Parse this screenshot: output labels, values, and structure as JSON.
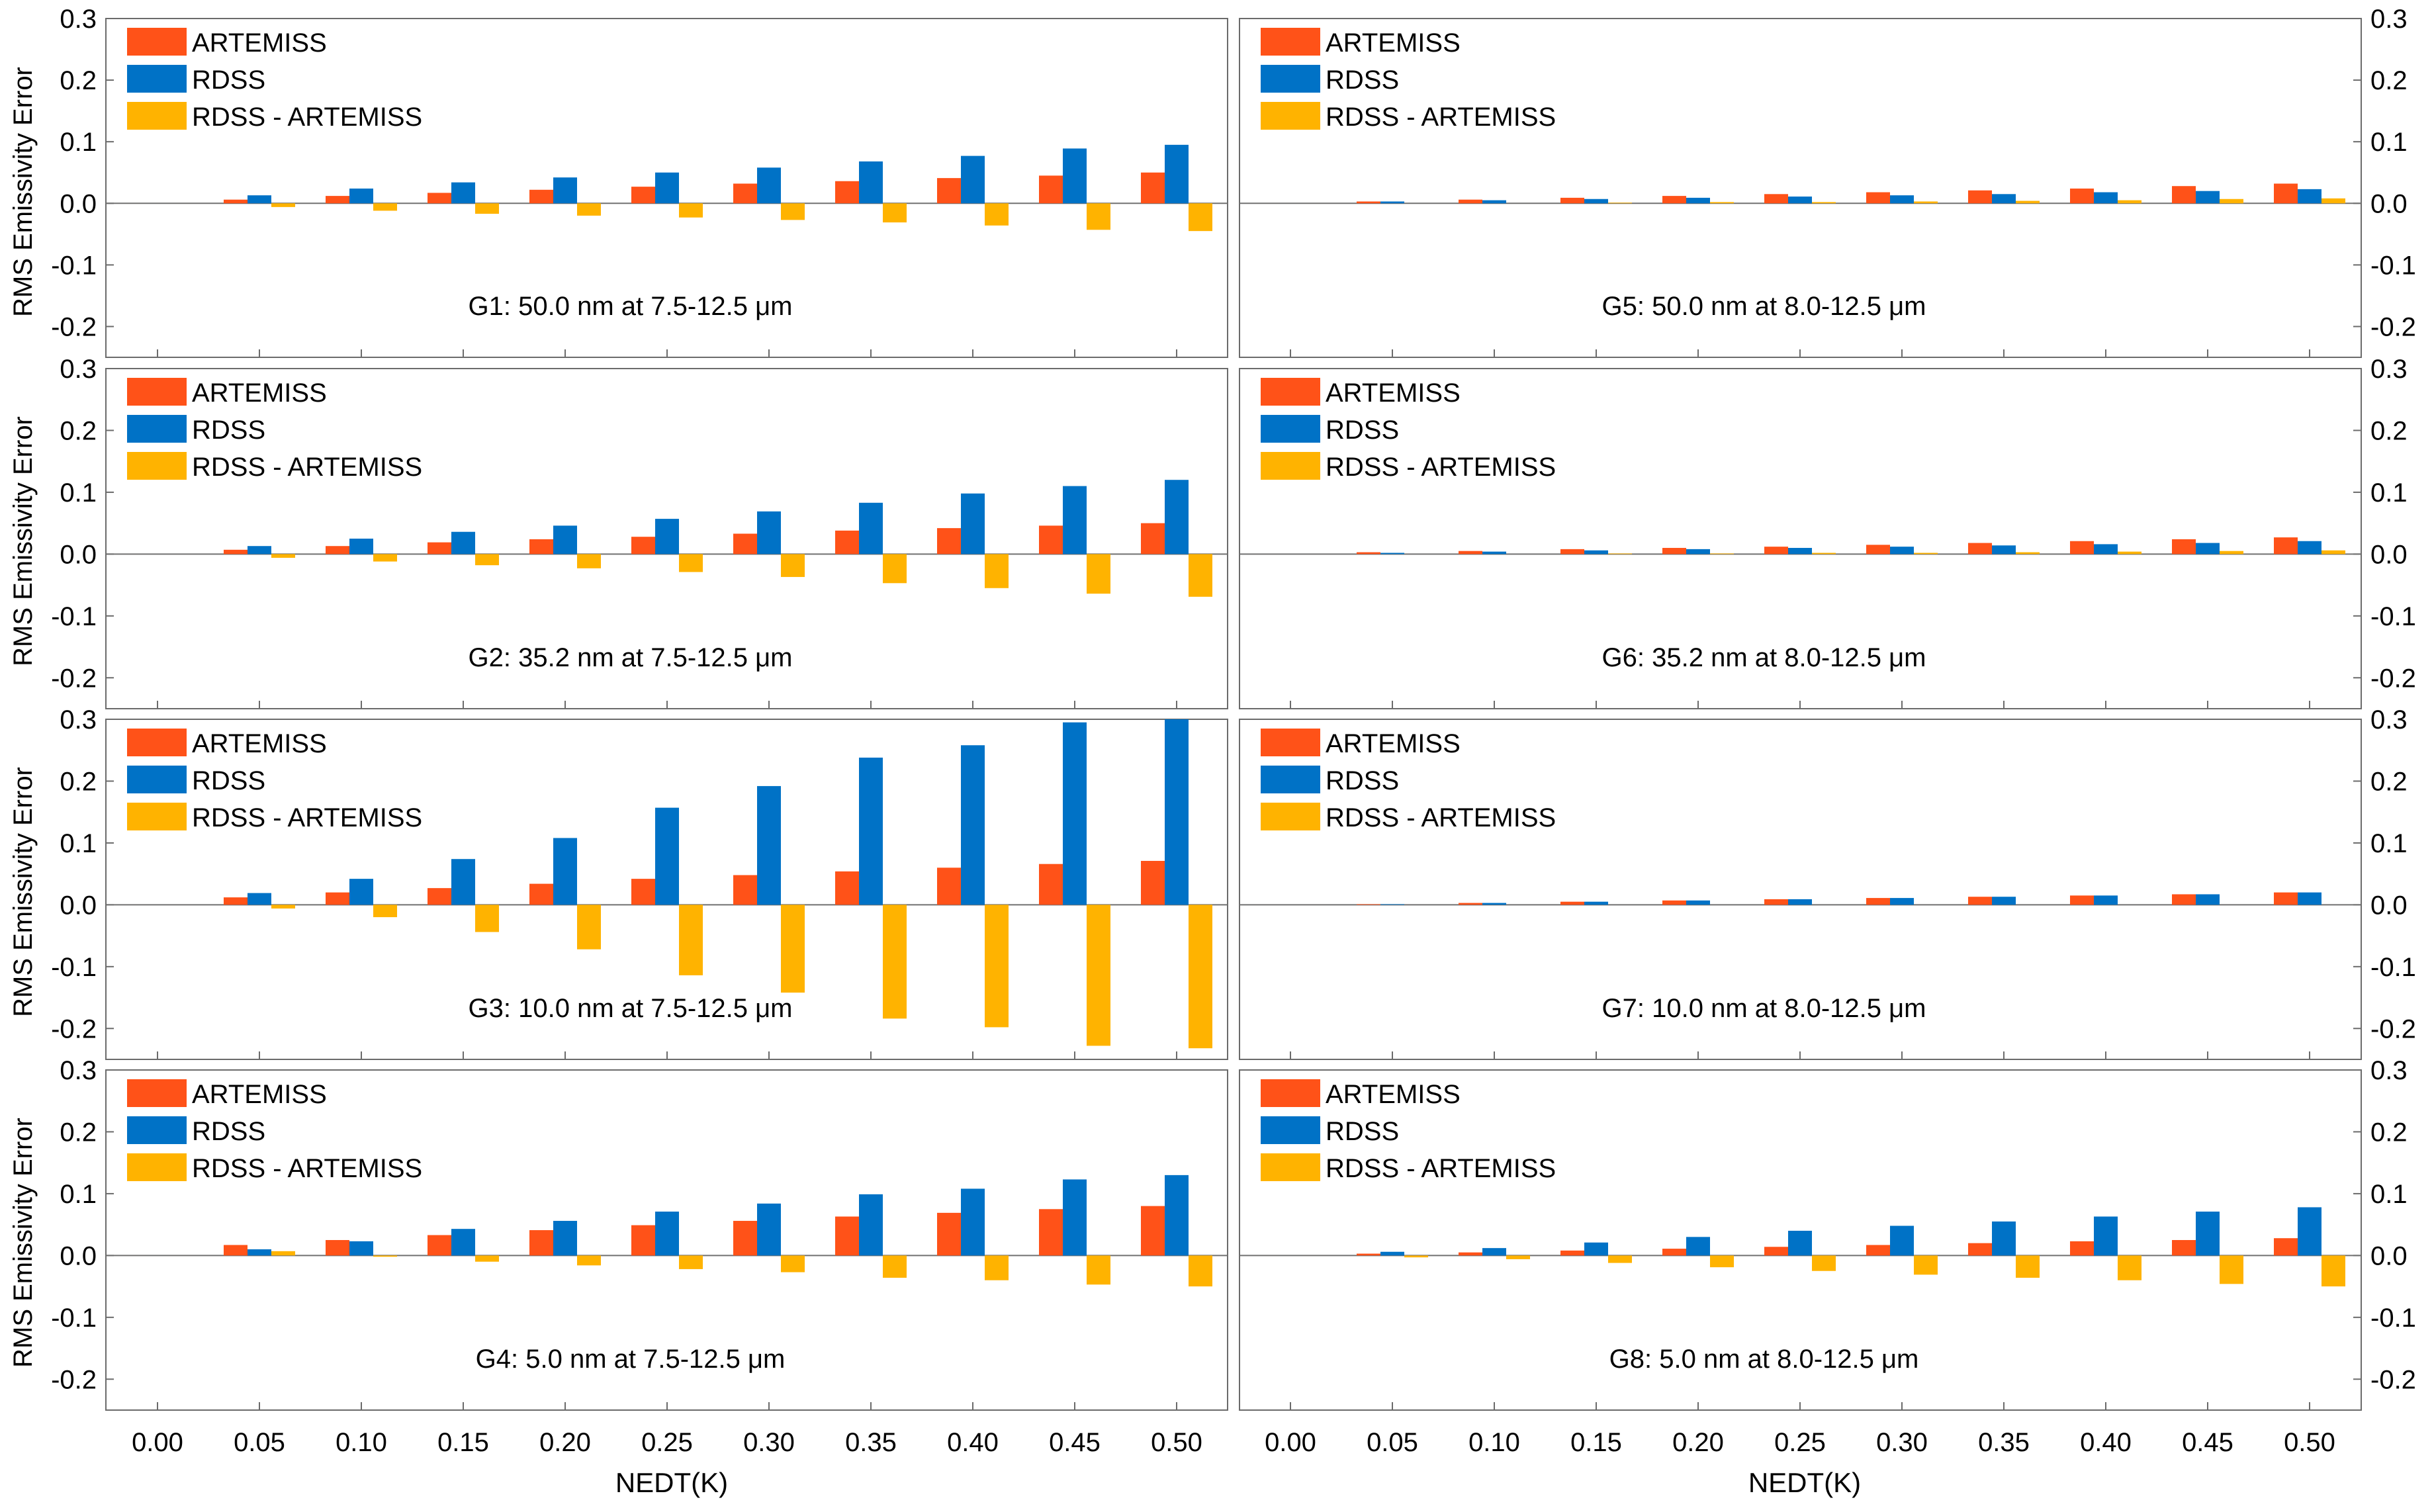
{
  "figure": {
    "ylabel": "RMS Emissivity Error",
    "xlabel": "NEDT(K)"
  },
  "colors": {
    "artemiss": "#FF5218",
    "rdss": "#0072C6",
    "diff": "#FFB300"
  },
  "legend": [
    "ARTEMISS",
    "RDSS",
    "RDSS - ARTEMISS"
  ],
  "chart_data": [
    {
      "type": "bar",
      "panel": "G1",
      "title": "G1: 50.0 nm at 7.5-12.5 μm",
      "x": [
        "0.00",
        "0.05",
        "0.10",
        "0.15",
        "0.20",
        "0.25",
        "0.30",
        "0.35",
        "0.40",
        "0.45",
        "0.50"
      ],
      "ylim": [
        -0.25,
        0.3
      ],
      "yticks": [
        "0.3",
        "0.2",
        "0.1",
        "0.0",
        "-0.1",
        "-0.2"
      ],
      "series": [
        {
          "name": "ARTEMISS",
          "values": [
            0,
            0.006,
            0.012,
            0.017,
            0.022,
            0.027,
            0.032,
            0.036,
            0.041,
            0.045,
            0.05
          ]
        },
        {
          "name": "RDSS",
          "values": [
            0,
            0.013,
            0.024,
            0.034,
            0.042,
            0.05,
            0.058,
            0.068,
            0.077,
            0.089,
            0.095
          ]
        },
        {
          "name": "RDSS - ARTEMISS",
          "values": [
            0,
            -0.006,
            -0.012,
            -0.017,
            -0.02,
            -0.023,
            -0.027,
            -0.031,
            -0.036,
            -0.043,
            -0.045
          ]
        }
      ]
    },
    {
      "type": "bar",
      "panel": "G5",
      "title": "G5: 50.0 nm at 8.0-12.5 μm",
      "x": [
        "0.00",
        "0.05",
        "0.10",
        "0.15",
        "0.20",
        "0.25",
        "0.30",
        "0.35",
        "0.40",
        "0.45",
        "0.50"
      ],
      "ylim": [
        -0.25,
        0.3
      ],
      "yticks": [
        "0.3",
        "0.2",
        "0.1",
        "0.0",
        "-0.1",
        "-0.2"
      ],
      "series": [
        {
          "name": "ARTEMISS",
          "values": [
            0,
            0.003,
            0.006,
            0.009,
            0.012,
            0.015,
            0.018,
            0.021,
            0.024,
            0.028,
            0.032
          ]
        },
        {
          "name": "RDSS",
          "values": [
            0,
            0.003,
            0.005,
            0.007,
            0.009,
            0.011,
            0.013,
            0.015,
            0.018,
            0.02,
            0.023
          ]
        },
        {
          "name": "RDSS - ARTEMISS",
          "values": [
            0,
            0,
            0,
            0.001,
            0.002,
            0.002,
            0.003,
            0.004,
            0.005,
            0.007,
            0.008
          ]
        }
      ]
    },
    {
      "type": "bar",
      "panel": "G2",
      "title": "G2: 35.2 nm at 7.5-12.5 μm",
      "x": [
        "0.00",
        "0.05",
        "0.10",
        "0.15",
        "0.20",
        "0.25",
        "0.30",
        "0.35",
        "0.40",
        "0.45",
        "0.50"
      ],
      "ylim": [
        -0.25,
        0.3
      ],
      "yticks": [
        "0.3",
        "0.2",
        "0.1",
        "0.0",
        "-0.1",
        "-0.2"
      ],
      "series": [
        {
          "name": "ARTEMISS",
          "values": [
            0,
            0.007,
            0.013,
            0.019,
            0.024,
            0.028,
            0.033,
            0.038,
            0.042,
            0.046,
            0.05
          ]
        },
        {
          "name": "RDSS",
          "values": [
            0,
            0.013,
            0.025,
            0.036,
            0.046,
            0.057,
            0.069,
            0.083,
            0.098,
            0.11,
            0.12
          ]
        },
        {
          "name": "RDSS - ARTEMISS",
          "values": [
            0,
            -0.006,
            -0.012,
            -0.018,
            -0.023,
            -0.029,
            -0.037,
            -0.047,
            -0.055,
            -0.064,
            -0.069
          ]
        }
      ]
    },
    {
      "type": "bar",
      "panel": "G6",
      "title": "G6: 35.2 nm at 8.0-12.5 μm",
      "x": [
        "0.00",
        "0.05",
        "0.10",
        "0.15",
        "0.20",
        "0.25",
        "0.30",
        "0.35",
        "0.40",
        "0.45",
        "0.50"
      ],
      "ylim": [
        -0.25,
        0.3
      ],
      "yticks": [
        "0.3",
        "0.2",
        "0.1",
        "0.0",
        "-0.1",
        "-0.2"
      ],
      "series": [
        {
          "name": "ARTEMISS",
          "values": [
            0,
            0.003,
            0.005,
            0.008,
            0.01,
            0.012,
            0.015,
            0.018,
            0.021,
            0.024,
            0.027
          ]
        },
        {
          "name": "RDSS",
          "values": [
            0,
            0.002,
            0.004,
            0.006,
            0.008,
            0.01,
            0.012,
            0.014,
            0.016,
            0.018,
            0.021
          ]
        },
        {
          "name": "RDSS - ARTEMISS",
          "values": [
            0,
            0,
            0,
            0.001,
            0.001,
            0.002,
            0.002,
            0.003,
            0.004,
            0.005,
            0.006
          ]
        }
      ]
    },
    {
      "type": "bar",
      "panel": "G3",
      "title": "G3: 10.0 nm at 7.5-12.5 μm",
      "x": [
        "0.00",
        "0.05",
        "0.10",
        "0.15",
        "0.20",
        "0.25",
        "0.30",
        "0.35",
        "0.40",
        "0.45",
        "0.50"
      ],
      "ylim": [
        -0.25,
        0.3
      ],
      "yticks": [
        "0.3",
        "0.2",
        "0.1",
        "0.0",
        "-0.1",
        "-0.2"
      ],
      "series": [
        {
          "name": "ARTEMISS",
          "values": [
            0,
            0.012,
            0.02,
            0.027,
            0.034,
            0.042,
            0.048,
            0.054,
            0.06,
            0.066,
            0.071
          ]
        },
        {
          "name": "RDSS",
          "values": [
            0,
            0.019,
            0.042,
            0.074,
            0.108,
            0.157,
            0.192,
            0.238,
            0.258,
            0.295,
            0.3
          ]
        },
        {
          "name": "RDSS - ARTEMISS",
          "values": [
            0,
            -0.006,
            -0.02,
            -0.044,
            -0.072,
            -0.114,
            -0.142,
            -0.184,
            -0.198,
            -0.228,
            -0.232
          ]
        }
      ]
    },
    {
      "type": "bar",
      "panel": "G7",
      "title": "G7: 10.0 nm at 8.0-12.5 μm",
      "x": [
        "0.00",
        "0.05",
        "0.10",
        "0.15",
        "0.20",
        "0.25",
        "0.30",
        "0.35",
        "0.40",
        "0.45",
        "0.50"
      ],
      "ylim": [
        -0.25,
        0.3
      ],
      "yticks": [
        "0.3",
        "0.2",
        "0.1",
        "0.0",
        "-0.1",
        "-0.2"
      ],
      "series": [
        {
          "name": "ARTEMISS",
          "values": [
            0,
            0.001,
            0.003,
            0.005,
            0.007,
            0.009,
            0.011,
            0.013,
            0.015,
            0.017,
            0.02
          ]
        },
        {
          "name": "RDSS",
          "values": [
            0,
            0.001,
            0.003,
            0.005,
            0.007,
            0.009,
            0.011,
            0.013,
            0.015,
            0.017,
            0.02
          ]
        },
        {
          "name": "RDSS - ARTEMISS",
          "values": [
            0,
            0,
            0,
            0,
            0,
            0,
            0,
            0,
            0,
            0,
            0
          ]
        }
      ]
    },
    {
      "type": "bar",
      "panel": "G4",
      "title": "G4: 5.0 nm at 7.5-12.5 μm",
      "x": [
        "0.00",
        "0.05",
        "0.10",
        "0.15",
        "0.20",
        "0.25",
        "0.30",
        "0.35",
        "0.40",
        "0.45",
        "0.50"
      ],
      "ylim": [
        -0.25,
        0.3
      ],
      "yticks": [
        "0.3",
        "0.2",
        "0.1",
        "0.0",
        "-0.1",
        "-0.2"
      ],
      "series": [
        {
          "name": "ARTEMISS",
          "values": [
            0,
            0.017,
            0.025,
            0.033,
            0.041,
            0.049,
            0.056,
            0.063,
            0.069,
            0.075,
            0.08
          ]
        },
        {
          "name": "RDSS",
          "values": [
            0,
            0.01,
            0.023,
            0.043,
            0.056,
            0.071,
            0.084,
            0.099,
            0.108,
            0.123,
            0.13
          ]
        },
        {
          "name": "RDSS - ARTEMISS",
          "values": [
            0,
            0.007,
            -0.002,
            -0.01,
            -0.016,
            -0.022,
            -0.027,
            -0.036,
            -0.04,
            -0.047,
            -0.05
          ]
        }
      ]
    },
    {
      "type": "bar",
      "panel": "G8",
      "title": "G8: 5.0 nm at 8.0-12.5 μm",
      "x": [
        "0.00",
        "0.05",
        "0.10",
        "0.15",
        "0.20",
        "0.25",
        "0.30",
        "0.35",
        "0.40",
        "0.45",
        "0.50"
      ],
      "ylim": [
        -0.25,
        0.3
      ],
      "yticks": [
        "0.3",
        "0.2",
        "0.1",
        "0.0",
        "-0.1",
        "-0.2"
      ],
      "series": [
        {
          "name": "ARTEMISS",
          "values": [
            0,
            0.003,
            0.005,
            0.008,
            0.011,
            0.014,
            0.017,
            0.02,
            0.023,
            0.025,
            0.028
          ]
        },
        {
          "name": "RDSS",
          "values": [
            0,
            0.006,
            0.012,
            0.021,
            0.03,
            0.04,
            0.048,
            0.055,
            0.063,
            0.071,
            0.078
          ]
        },
        {
          "name": "RDSS - ARTEMISS",
          "values": [
            0,
            -0.003,
            -0.006,
            -0.012,
            -0.019,
            -0.025,
            -0.031,
            -0.036,
            -0.04,
            -0.046,
            -0.05
          ]
        }
      ]
    }
  ]
}
